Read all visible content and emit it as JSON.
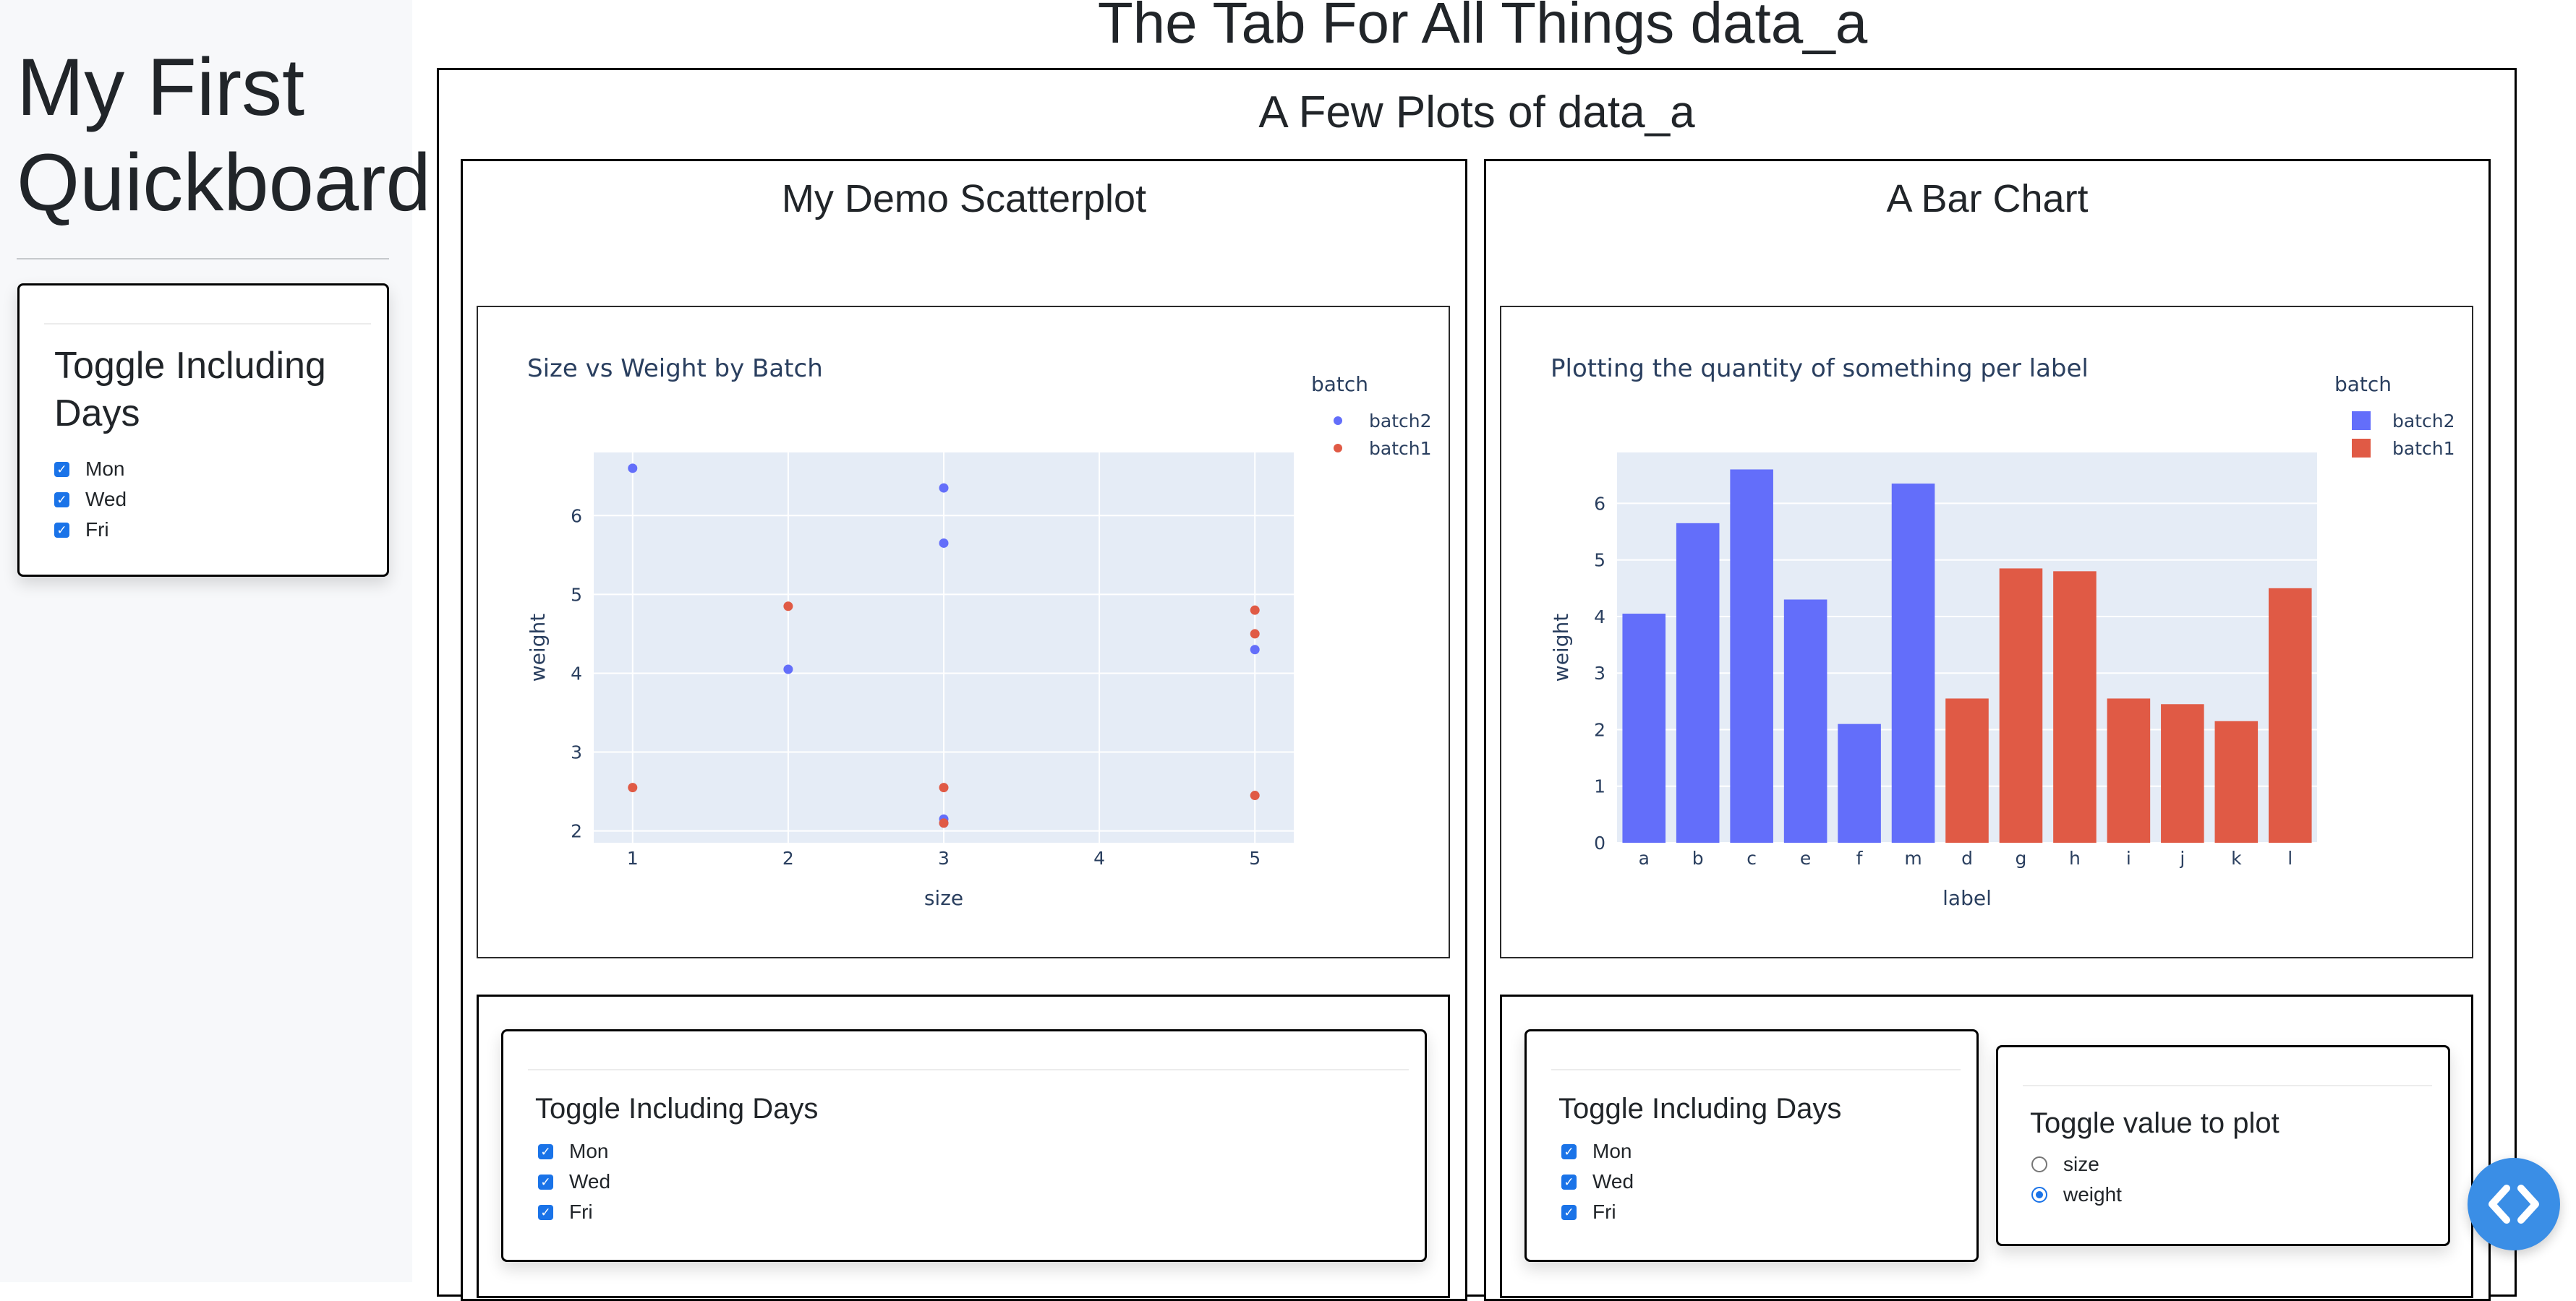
{
  "app": {
    "title": "My First Quickboard"
  },
  "sidebar": {
    "toggle": {
      "title": "Toggle Including Days",
      "options": [
        {
          "label": "Mon",
          "checked": true
        },
        {
          "label": "Wed",
          "checked": true
        },
        {
          "label": "Fri",
          "checked": true
        }
      ]
    }
  },
  "main": {
    "tab_title": "The Tab For All Things data_a",
    "section_title": "A Few Plots of data_a",
    "scatter_panel": {
      "title": "My Demo Scatterplot",
      "toggle": {
        "title": "Toggle Including Days",
        "options": [
          {
            "label": "Mon",
            "checked": true
          },
          {
            "label": "Wed",
            "checked": true
          },
          {
            "label": "Fri",
            "checked": true
          }
        ]
      }
    },
    "bar_panel": {
      "title": "A Bar Chart",
      "toggle": {
        "title": "Toggle Including Days",
        "options": [
          {
            "label": "Mon",
            "checked": true
          },
          {
            "label": "Wed",
            "checked": true
          },
          {
            "label": "Fri",
            "checked": true
          }
        ]
      },
      "value_toggle": {
        "title": "Toggle value to plot",
        "options": [
          {
            "label": "size",
            "selected": false
          },
          {
            "label": "weight",
            "selected": true
          }
        ]
      }
    }
  },
  "colors": {
    "batch2": "#636efa",
    "batch1": "#e05a45",
    "plot_bg": "#e5ecf6",
    "fab": "#3a8ee6"
  },
  "icons": {
    "fab": "code-icon"
  },
  "chart_data": [
    {
      "type": "scatter",
      "title": "Size vs Weight by Batch",
      "xlabel": "size",
      "ylabel": "weight",
      "xlim": [
        0.75,
        5.25
      ],
      "ylim": [
        1.85,
        6.8
      ],
      "xticks": [
        1,
        2,
        3,
        4,
        5
      ],
      "yticks": [
        2,
        3,
        4,
        5,
        6
      ],
      "legend_title": "batch",
      "legend_position": "top-right",
      "grid": true,
      "series": [
        {
          "name": "batch2",
          "points": [
            [
              1,
              6.6
            ],
            [
              2,
              4.05
            ],
            [
              3,
              6.35
            ],
            [
              3,
              5.65
            ],
            [
              3,
              2.15
            ],
            [
              3,
              2.1
            ],
            [
              5,
              4.3
            ]
          ]
        },
        {
          "name": "batch1",
          "points": [
            [
              1,
              2.55
            ],
            [
              2,
              4.85
            ],
            [
              3,
              2.55
            ],
            [
              3,
              2.1
            ],
            [
              5,
              4.8
            ],
            [
              5,
              4.5
            ],
            [
              5,
              2.45
            ]
          ]
        }
      ]
    },
    {
      "type": "bar",
      "title": "Plotting the quantity of something per label",
      "xlabel": "label",
      "ylabel": "weight",
      "ylim": [
        0,
        6.9
      ],
      "yticks": [
        0,
        1,
        2,
        3,
        4,
        5,
        6
      ],
      "legend_title": "batch",
      "legend_position": "top-right",
      "grid": true,
      "categories": [
        "a",
        "b",
        "c",
        "e",
        "f",
        "m",
        "d",
        "g",
        "h",
        "i",
        "j",
        "k",
        "l"
      ],
      "series": [
        {
          "name": "batch2",
          "values": [
            4.05,
            5.65,
            6.6,
            4.3,
            2.1,
            6.35,
            null,
            null,
            null,
            null,
            null,
            null,
            null
          ]
        },
        {
          "name": "batch1",
          "values": [
            null,
            null,
            null,
            null,
            null,
            null,
            2.55,
            4.85,
            4.8,
            2.55,
            2.45,
            2.15,
            4.5
          ]
        }
      ]
    }
  ]
}
